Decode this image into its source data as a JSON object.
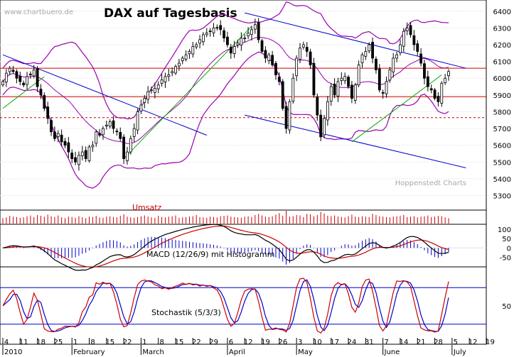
{
  "chart_data": {
    "type": "candlestick",
    "title": "DAX auf Tagesbasis",
    "watermark": "www.chartbuero.de",
    "source": "Hoppenstedt Charts",
    "price_axis": {
      "ticks": [
        "6400",
        "6300",
        "6200",
        "6100",
        "6000",
        "5900",
        "5800",
        "5700",
        "5600",
        "5500",
        "5400",
        "5300"
      ],
      "ylim": [
        5230,
        6450
      ]
    },
    "dates": {
      "days": [
        "4",
        "11",
        "18",
        "25",
        "1",
        "8",
        "15",
        "22",
        "1",
        "8",
        "15",
        "22",
        "29",
        "6",
        "12",
        "19",
        "26",
        "3",
        "10",
        "17",
        "24",
        "31",
        "7",
        "14",
        "21",
        "28",
        "5",
        "12",
        "19"
      ],
      "months": [
        "2010",
        "February",
        "March",
        "April",
        "May",
        "June",
        "July"
      ]
    },
    "horizontal_lines": [
      {
        "value": 6060,
        "color": "#cc0000",
        "style": "solid"
      },
      {
        "value": 5890,
        "color": "#cc0000",
        "style": "solid"
      },
      {
        "value": 5765,
        "color": "#cc0000",
        "style": "dashed"
      }
    ],
    "trend_lines_blue": [
      {
        "from": [
          "2010-01-04",
          6140
        ],
        "to": [
          "2010-03-26",
          5660
        ]
      },
      {
        "from": [
          "2010-04-12",
          6390
        ],
        "to": [
          "2010-07-09",
          6060
        ]
      },
      {
        "from": [
          "2010-04-12",
          5780
        ],
        "to": [
          "2010-07-09",
          5465
        ]
      }
    ],
    "trend_lines_green": [
      {
        "from": [
          "2010-01-04",
          5820
        ],
        "to": [
          "2010-01-20",
          6010
        ]
      },
      {
        "from": [
          "2010-02-22",
          5520
        ],
        "to": [
          "2010-04-14",
          6310
        ]
      },
      {
        "from": [
          "2010-05-25",
          5620
        ],
        "to": [
          "2010-06-30",
          6020
        ]
      }
    ],
    "close": [
      5980,
      6030,
      6060,
      6040,
      6000,
      5980,
      5960,
      6010,
      6020,
      6050,
      5950,
      5900,
      5820,
      5760,
      5680,
      5640,
      5670,
      5620,
      5600,
      5560,
      5520,
      5500,
      5540,
      5560,
      5520,
      5590,
      5600,
      5680,
      5660,
      5700,
      5720,
      5740,
      5700,
      5680,
      5640,
      5520,
      5560,
      5640,
      5700,
      5800,
      5840,
      5880,
      5920,
      5930,
      5940,
      5960,
      5990,
      6010,
      6020,
      6040,
      6070,
      6090,
      6120,
      6140,
      6160,
      6190,
      6200,
      6230,
      6260,
      6270,
      6280,
      6300,
      6300,
      6290,
      6240,
      6200,
      6150,
      6190,
      6210,
      6240,
      6240,
      6270,
      6290,
      6320,
      6230,
      6160,
      6120,
      6140,
      6080,
      6020,
      5980,
      5820,
      5700,
      5860,
      6000,
      6120,
      6180,
      6200,
      6160,
      6080,
      5900,
      5780,
      5650,
      5760,
      5860,
      5950,
      5900,
      5980,
      6000,
      6010,
      5950,
      5880,
      5960,
      6080,
      6140,
      6160,
      6200,
      6120,
      6050,
      5930,
      5910,
      5980,
      6050,
      6120,
      6140,
      6200,
      6280,
      6300,
      6260,
      6200,
      6160,
      6090,
      6000,
      5950,
      5930,
      5880,
      5860,
      5970,
      6000,
      6040
    ],
    "volume_label": "Umsatz",
    "volume": [
      14,
      16,
      20,
      18,
      17,
      15,
      16,
      19,
      21,
      17,
      22,
      20,
      18,
      23,
      19,
      17,
      21,
      16,
      14,
      18,
      17,
      15,
      19,
      16,
      14,
      18,
      17,
      20,
      16,
      15,
      18,
      19,
      17,
      16,
      20,
      24,
      18,
      16,
      15,
      17,
      19,
      21,
      18,
      16,
      15,
      20,
      17,
      16,
      18,
      19,
      21,
      15,
      16,
      17,
      18,
      19,
      22,
      17,
      16,
      15,
      18,
      17,
      16,
      19,
      20,
      21,
      18,
      17,
      16,
      15,
      18,
      19,
      17,
      22,
      25,
      21,
      18,
      17,
      19,
      23,
      27,
      20,
      33,
      18,
      19,
      22,
      21,
      17,
      25,
      24,
      19,
      22,
      30,
      26,
      20,
      19,
      21,
      18,
      17,
      16,
      19,
      23,
      18,
      17,
      19,
      18,
      17,
      25,
      22,
      19,
      18,
      17,
      16,
      18,
      19,
      20,
      22,
      17,
      18,
      19,
      16,
      18,
      19,
      21,
      17,
      18,
      20,
      19,
      16,
      14
    ],
    "macd": {
      "label": "MACD (12/26/9) mit Histogramm",
      "ticks": [
        "100",
        "50",
        "0",
        "-50"
      ],
      "ylim": [
        -95,
        120
      ]
    },
    "stochastic": {
      "label": "Stochastik (5/3/3)",
      "ticks": [
        "50"
      ],
      "levels": [
        80,
        20
      ],
      "ylim": [
        0,
        100
      ]
    }
  }
}
